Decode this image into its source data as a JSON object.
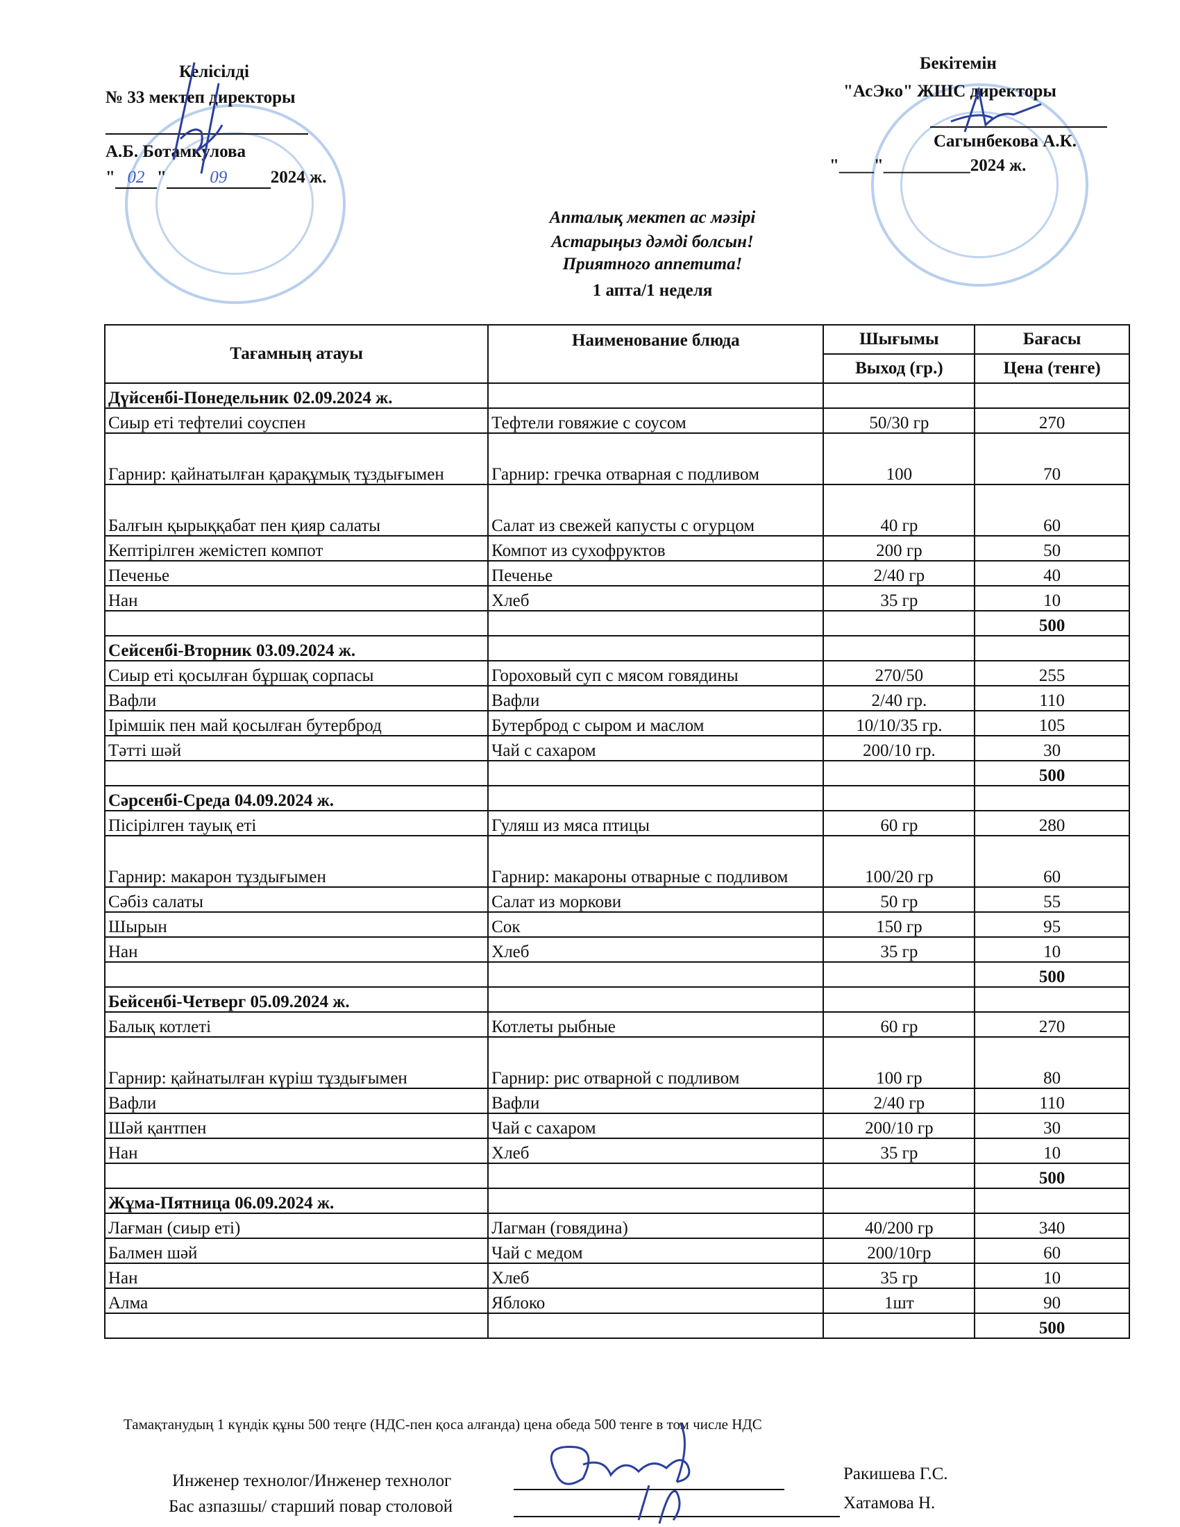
{
  "approval_left": {
    "heading": "Келісілді",
    "position": "№ 33 мектеп директоры",
    "name": "А.Б. Ботамкулова",
    "date_prefix": "\"",
    "day": "02",
    "month": "09",
    "year_suffix": "2024 ж."
  },
  "approval_right": {
    "heading": "Бекітемін",
    "position": "\"АсЭко\" ЖШС  директоры",
    "name": "Сагынбекова А.К.",
    "date_text": "\"____\"__________2024 ж."
  },
  "title": {
    "line1": "Апталық мектеп ас мәзірі",
    "line2": "Астарыңыз дәмді болсын!",
    "line3": "Приятного аппетита!",
    "line4": "1 апта/1 неделя"
  },
  "table": {
    "headers": {
      "kz_name": "Тағамның атауы",
      "ru_name": "Наименование блюда",
      "yield_kz": "Шығымы",
      "yield_ru": "Выход (гр.)",
      "price_kz": "Бағасы",
      "price_ru": "Цена (тенге)"
    },
    "days": [
      {
        "day": "Дүйсенбі-Понедельник 02.09.2024 ж.",
        "total": "500",
        "items": [
          {
            "kz": "Сиыр еті тефтелиі соуспен",
            "ru": "Тефтели говяжие с соусом",
            "yield": "50/30 гр",
            "price": "270"
          },
          {
            "kz": "Гарнир: қайнатылған қарақұмық тұздығымен",
            "ru": "Гарнир: гречка отварная с подливом",
            "yield": "100",
            "price": "70",
            "tall": true
          },
          {
            "kz": "Балғын қырыққабат пен қияр салаты",
            "ru": "Салат из свежей капусты с огурцом",
            "yield": "40 гр",
            "price": "60",
            "tall": true
          },
          {
            "kz": "Кептірілген жемістеп компот",
            "ru": "Компот из сухофруктов",
            "yield": "200 гр",
            "price": "50"
          },
          {
            "kz": "Печенье",
            "ru": "Печенье",
            "yield": "2/40 гр",
            "price": "40"
          },
          {
            "kz": "Нан",
            "ru": "Хлеб",
            "yield": "35 гр",
            "price": "10"
          }
        ]
      },
      {
        "day": "Сейсенбі-Вторник 03.09.2024 ж.",
        "total": "500",
        "items": [
          {
            "kz": "Сиыр еті қосылған бұршақ сорпасы",
            "ru": "Гороховый суп с мясом говядины",
            "yield": "270/50",
            "price": "255"
          },
          {
            "kz": "Вафли",
            "ru": "Вафли",
            "yield": "2/40 гр.",
            "price": "110"
          },
          {
            "kz": "Ірімшік пен май қосылған бутерброд",
            "ru": "Бутерброд с сыром и маслом",
            "yield": "10/10/35 гр.",
            "price": "105"
          },
          {
            "kz": "Тәтті шәй",
            "ru": "Чай с сахаром",
            "yield": "200/10 гр.",
            "price": "30"
          }
        ]
      },
      {
        "day": "Сәрсенбі-Среда 04.09.2024 ж.",
        "total": "500",
        "items": [
          {
            "kz": "Пісірілген тауық еті",
            "ru": "Гуляш из мяса птицы",
            "yield": "60 гр",
            "price": "280"
          },
          {
            "kz": "Гарнир: макарон тұздығымен",
            "ru": "Гарнир: макароны отварные  с подливом",
            "yield": "100/20 гр",
            "price": "60",
            "tall": true
          },
          {
            "kz": "Сәбіз салаты",
            "ru": "Салат из моркови",
            "yield": "50 гр",
            "price": "55"
          },
          {
            "kz": "Шырын",
            "ru": "Сок",
            "yield": "150 гр",
            "price": "95"
          },
          {
            "kz": "Нан",
            "ru": "Хлеб",
            "yield": "35 гр",
            "price": "10"
          }
        ]
      },
      {
        "day": "Бейсенбі-Четверг 05.09.2024 ж.",
        "total": "500",
        "items": [
          {
            "kz": "Балық котлеті",
            "ru": "Котлеты рыбные",
            "yield": "60 гр",
            "price": "270"
          },
          {
            "kz": "Гарнир: қайнатылған күріш тұздығымен",
            "ru": "Гарнир: рис отварной с подливом",
            "yield": "100 гр",
            "price": "80",
            "tall": true
          },
          {
            "kz": "Вафли",
            "ru": "Вафли",
            "yield": "2/40 гр",
            "price": "110"
          },
          {
            "kz": " Шәй қантпен",
            "ru": "Чай с сахаром",
            "yield": "200/10 гр",
            "price": "30"
          },
          {
            "kz": "Нан",
            "ru": "Хлеб",
            "yield": "35 гр",
            "price": "10"
          }
        ]
      },
      {
        "day": "Жұма-Пятница 06.09.2024 ж.",
        "total": "500",
        "items": [
          {
            "kz": "Лағман (сиыр еті)",
            "ru": "Лагман (говядина)",
            "yield": "40/200 гр",
            "price": "340"
          },
          {
            "kz": "Балмен шәй",
            "ru": "Чай с медом",
            "yield": "200/10гр",
            "price": "60"
          },
          {
            "kz": "Нан",
            "ru": "Хлеб",
            "yield": "35 гр",
            "price": "10"
          },
          {
            "kz": " Алма",
            "ru": "Яблоко",
            "yield": "1шт",
            "price": "90"
          }
        ]
      }
    ]
  },
  "footer": {
    "note": "Тамақтанудың 1 күндік құны 500 теңге (НДС-пен қоса алғанда) цена обеда 500 тенге в том числе НДС",
    "signers": [
      {
        "role": "Инженер технолог/Инженер технолог",
        "name": "Ракишева Г.С."
      },
      {
        "role": "Бас азпазшы/ старший повар столовой",
        "name": "Хатамова Н."
      }
    ]
  },
  "colors": {
    "ink": "#111111",
    "stamp_blue": "#4682d2",
    "signature_blue": "#2a3f9e"
  }
}
